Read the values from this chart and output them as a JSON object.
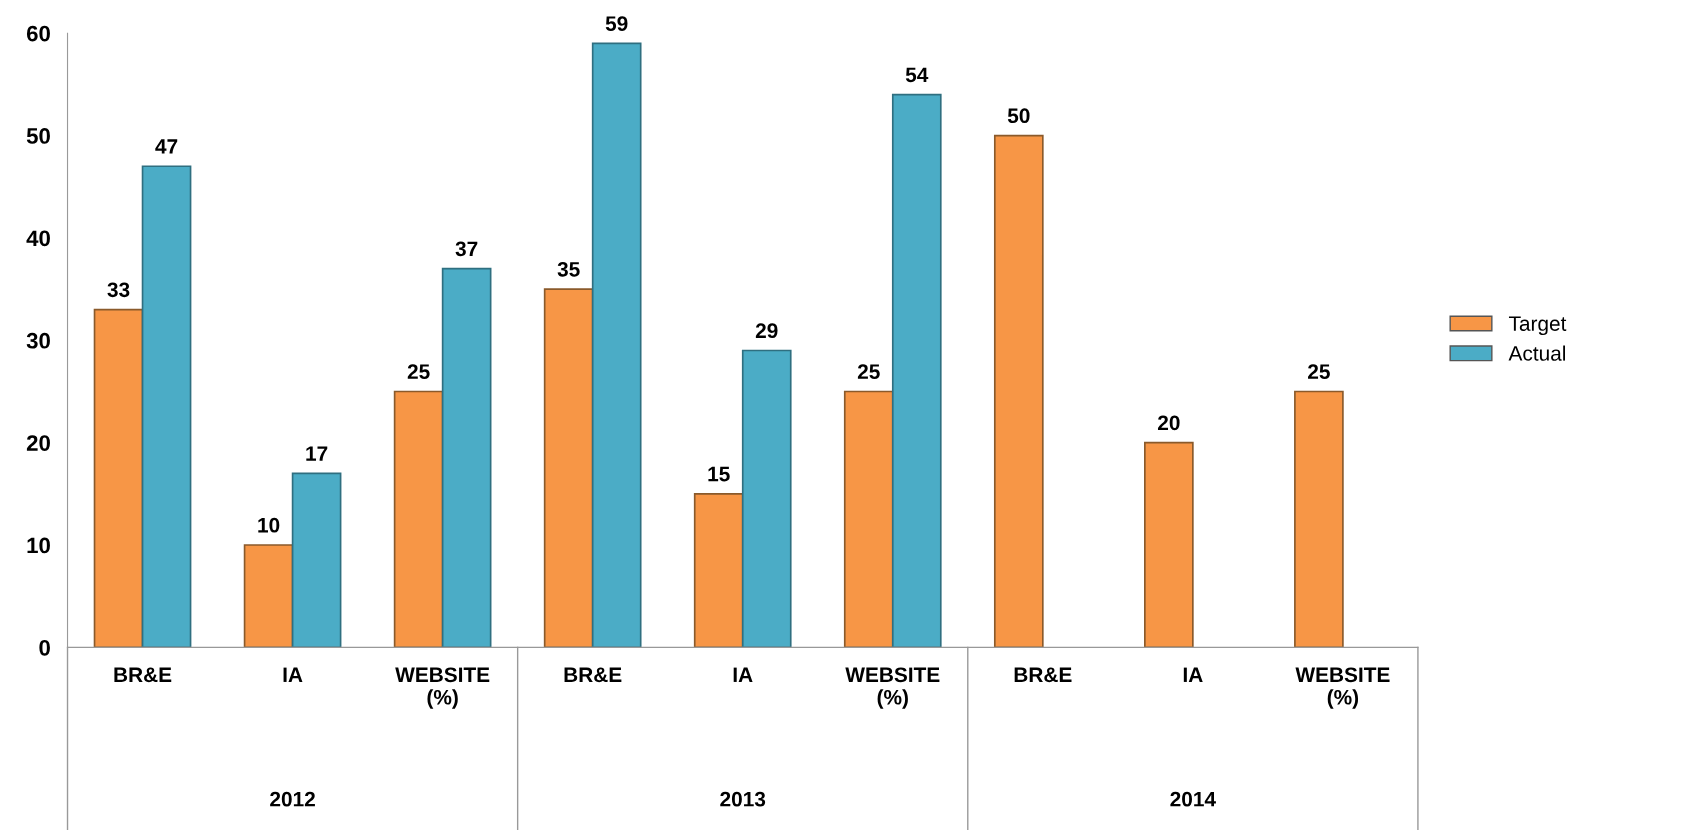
{
  "chart_data": {
    "type": "bar",
    "categories": [
      "BR&E",
      "IA",
      "WEBSITE\n(%)",
      "BR&E",
      "IA",
      "WEBSITE\n(%)",
      "BR&E",
      "IA",
      "WEBSITE\n(%)"
    ],
    "series": [
      {
        "name": "Target",
        "color": "#f79646",
        "values": [
          33,
          10,
          25,
          35,
          15,
          25,
          50,
          20,
          25
        ]
      },
      {
        "name": "Actual",
        "color": "#4bacc6",
        "values": [
          47,
          17,
          37,
          59,
          29,
          54,
          null,
          null,
          null
        ]
      }
    ],
    "annotations": [
      "2012",
      "2013",
      "2014"
    ],
    "ylim": [
      0,
      60
    ],
    "yticks": [
      0,
      10,
      20,
      30,
      40,
      50,
      60
    ],
    "data_labels": true,
    "legend": "right",
    "grid": false
  }
}
